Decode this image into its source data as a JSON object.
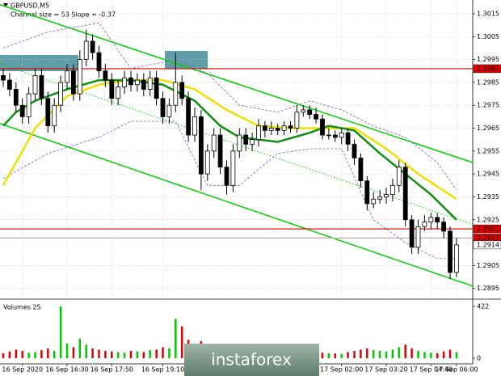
{
  "chart_data": {
    "type": "candlestick",
    "title": "GBPUSD,M5",
    "subtitle": "Channel size = 53 Slope = -0.37",
    "volume_title": "Volumes 25",
    "watermark": "instaforex",
    "categories": [
      null,
      null,
      null,
      "16 Sep 2020",
      null,
      null,
      null,
      null,
      null,
      null,
      "16 Sep 16:30",
      null,
      null,
      null,
      null,
      null,
      null,
      "16 Sep 17:50",
      null,
      null,
      null,
      null,
      null,
      null,
      null,
      "16 Sep 19:10",
      null,
      null,
      null,
      null,
      null,
      null,
      null,
      null,
      null,
      null,
      null,
      null,
      null,
      null,
      null,
      null,
      null,
      null,
      null,
      null,
      null,
      null,
      null,
      null,
      null,
      null,
      null,
      "17 Sep 02:00",
      null,
      null,
      null,
      null,
      null,
      null,
      "17 Sep 03:20",
      null,
      null,
      null,
      null,
      null,
      null,
      "17 Sep 04:40",
      null,
      null,
      null,
      "17 Sep 06:00"
    ],
    "open": [
      1.2988,
      1.2986,
      1.2982,
      1.2975,
      1.297,
      1.298,
      1.2988,
      1.2978,
      1.2966,
      1.2975,
      1.2985,
      1.299,
      1.298,
      1.2995,
      1.3003,
      1.2998,
      1.299,
      1.2986,
      1.2978,
      1.2983,
      1.2987,
      1.2984,
      1.2986,
      1.2982,
      1.2987,
      1.2978,
      1.297,
      1.2975,
      1.2985,
      1.2978,
      1.2962,
      1.297,
      1.2945,
      1.2955,
      1.2962,
      1.2948,
      1.294,
      1.2955,
      1.2962,
      1.2958,
      1.296,
      1.2966,
      1.2964,
      1.2965,
      1.2964,
      1.2966,
      1.2965,
      1.2972,
      1.2973,
      1.2971,
      1.2969,
      1.2962,
      1.2962,
      1.2961,
      1.2963,
      1.2958,
      1.2952,
      1.2942,
      1.2932,
      1.2934,
      1.2935,
      1.2936,
      1.294,
      1.2948,
      1.2925,
      1.2913,
      1.2922,
      1.2924,
      1.2926,
      1.2924,
      1.292,
      1.2902
    ],
    "high": [
      1.2991,
      1.2989,
      1.2985,
      1.2978,
      1.2983,
      1.2991,
      1.2991,
      1.2981,
      1.2978,
      1.2988,
      1.2993,
      1.2993,
      1.2999,
      1.3008,
      1.3006,
      1.3001,
      1.2993,
      1.2989,
      1.2986,
      1.299,
      1.299,
      1.2989,
      1.2989,
      1.299,
      1.299,
      1.2981,
      1.2978,
      1.2998,
      1.2988,
      1.2981,
      1.2974,
      1.2973,
      1.2958,
      1.2965,
      1.2965,
      1.2951,
      1.2958,
      1.2965,
      1.2965,
      1.2963,
      1.2969,
      1.2968,
      1.2968,
      1.2967,
      1.2968,
      1.2968,
      1.2975,
      1.2975,
      1.2975,
      1.2974,
      1.2971,
      1.2965,
      1.2964,
      1.2965,
      1.2965,
      1.296,
      1.2954,
      1.2944,
      1.2937,
      1.2938,
      1.2939,
      1.2943,
      1.2951,
      1.295,
      1.2927,
      1.2925,
      1.2927,
      1.2928,
      1.2928,
      1.2926,
      1.2922,
      1.2917
    ],
    "low": [
      1.2983,
      1.2979,
      1.2972,
      1.2967,
      1.2967,
      1.2977,
      1.2975,
      1.2963,
      1.2963,
      1.2972,
      1.2982,
      1.2977,
      1.2977,
      1.2992,
      1.2995,
      1.2987,
      1.2983,
      1.2975,
      1.2975,
      1.298,
      1.2981,
      1.2981,
      1.2979,
      1.2979,
      1.2975,
      1.2967,
      1.2967,
      1.2972,
      1.2975,
      1.2959,
      1.2959,
      1.2938,
      1.2942,
      1.2952,
      1.2945,
      1.2936,
      1.2937,
      1.2952,
      1.2955,
      1.2955,
      1.2957,
      1.2961,
      1.2962,
      1.2962,
      1.2962,
      1.2963,
      1.2963,
      1.297,
      1.2969,
      1.2967,
      1.296,
      1.296,
      1.2959,
      1.2958,
      1.2955,
      1.2949,
      1.2939,
      1.2929,
      1.293,
      1.2932,
      1.2932,
      1.2933,
      1.2937,
      1.2922,
      1.291,
      1.291,
      1.292,
      1.2921,
      1.2921,
      1.2917,
      1.2899,
      1.29
    ],
    "close": [
      1.2986,
      1.2982,
      1.2975,
      1.297,
      1.298,
      1.2988,
      1.2978,
      1.2966,
      1.2975,
      1.2985,
      1.299,
      1.298,
      1.2995,
      1.3003,
      1.2998,
      1.299,
      1.2986,
      1.2978,
      1.2983,
      1.2987,
      1.2984,
      1.2986,
      1.2982,
      1.2987,
      1.2978,
      1.297,
      1.2975,
      1.2985,
      1.2978,
      1.2962,
      1.297,
      1.2945,
      1.2955,
      1.2962,
      1.2948,
      1.294,
      1.2955,
      1.2962,
      1.2958,
      1.296,
      1.2966,
      1.2964,
      1.2965,
      1.2964,
      1.2966,
      1.2965,
      1.2972,
      1.2973,
      1.2971,
      1.2969,
      1.2962,
      1.2962,
      1.2961,
      1.2963,
      1.2958,
      1.2952,
      1.2942,
      1.2932,
      1.2934,
      1.2935,
      1.2936,
      1.294,
      1.2948,
      1.2925,
      1.2913,
      1.2922,
      1.2924,
      1.2926,
      1.2924,
      1.292,
      1.2902,
      1.2914
    ],
    "volumes": [
      40,
      55,
      70,
      60,
      45,
      50,
      65,
      80,
      60,
      422,
      120,
      90,
      160,
      110,
      80,
      70,
      60,
      55,
      50,
      45,
      60,
      55,
      50,
      65,
      70,
      90,
      80,
      320,
      260,
      150,
      120,
      140,
      110,
      90,
      80,
      100,
      85,
      60,
      50,
      45,
      40,
      35,
      30,
      35,
      30,
      28,
      40,
      35,
      30,
      32,
      45,
      40,
      38,
      35,
      50,
      60,
      70,
      80,
      65,
      60,
      55,
      70,
      90,
      110,
      80,
      60,
      50,
      45,
      40,
      55,
      70,
      50
    ],
    "up_color": "#00c800",
    "down_color": "#e00000",
    "ylim": [
      1.2891,
      1.3021
    ],
    "yticks": [
      1.2895,
      1.2905,
      1.2925,
      1.2935,
      1.2945,
      1.2955,
      1.2965,
      1.2975,
      1.2985,
      1.2995,
      1.3005,
      1.3015
    ],
    "vlim": [
      0,
      422
    ],
    "vticks": [
      0,
      422
    ],
    "grid": true,
    "lines": [
      {
        "color": "#8a5ac8",
        "width": 0.8,
        "dash": true,
        "x": [
          0,
          7,
          15,
          20,
          27,
          32,
          37,
          43,
          48,
          53,
          58,
          63,
          68,
          71
        ],
        "values": [
          1.3,
          1.3007,
          1.3011,
          1.2991,
          1.2995,
          1.2989,
          1.2975,
          1.2972,
          1.2977,
          1.2973,
          1.2966,
          1.2961,
          1.295,
          1.2938
        ]
      },
      {
        "color": "#8a5ac8",
        "width": 0.8,
        "dash": true,
        "x": [
          0,
          7,
          15,
          20,
          27,
          32,
          37,
          43,
          48,
          53,
          58,
          63,
          68,
          71
        ],
        "values": [
          1.2943,
          1.2954,
          1.2961,
          1.2968,
          1.2968,
          1.294,
          1.294,
          1.2954,
          1.2956,
          1.2956,
          1.2925,
          1.2915,
          1.2908,
          1.2908
        ]
      },
      {
        "color": "#f0e000",
        "width": 2.5,
        "dash": false,
        "x": [
          0,
          5,
          10,
          15,
          20,
          25,
          30,
          35,
          40,
          45,
          50,
          55,
          60,
          65,
          71
        ],
        "values": [
          1.294,
          1.2965,
          1.2979,
          1.2984,
          1.2986,
          1.2986,
          1.2982,
          1.2973,
          1.2966,
          1.2965,
          1.2965,
          1.2965,
          1.2956,
          1.2945,
          1.2934
        ]
      },
      {
        "color": "#109010",
        "width": 2.5,
        "dash": false,
        "x": [
          0,
          2,
          5,
          10,
          15,
          20,
          25,
          30,
          34,
          37,
          43,
          48,
          51,
          55,
          59,
          63,
          67,
          71
        ],
        "values": [
          1.2966,
          1.2972,
          1.2977,
          1.2982,
          1.2986,
          1.2986,
          1.2984,
          1.2977,
          1.2966,
          1.2961,
          1.2959,
          1.2963,
          1.2966,
          1.2964,
          1.2954,
          1.2945,
          1.2936,
          1.2925
        ]
      }
    ],
    "channel": {
      "color": "#00d000",
      "upper": [
        1.3019,
        1.295
      ],
      "middle": [
        1.2993,
        1.2923
      ],
      "lower": [
        1.2967,
        1.2896
      ]
    },
    "levels": [
      {
        "value": 1.2991,
        "color": "#e00000"
      },
      {
        "value": 1.2921,
        "color": "#e00000"
      },
      {
        "value": 1.2917,
        "color": "#c8a8a8"
      }
    ],
    "price_labels": [
      {
        "value": 1.2991,
        "color": "#e00000"
      },
      {
        "value": 1.2921,
        "color": "#e00000"
      },
      {
        "value": 1.2917,
        "color": "#e00000"
      },
      {
        "value": 1.2914,
        "color": "#ffffff"
      }
    ]
  }
}
